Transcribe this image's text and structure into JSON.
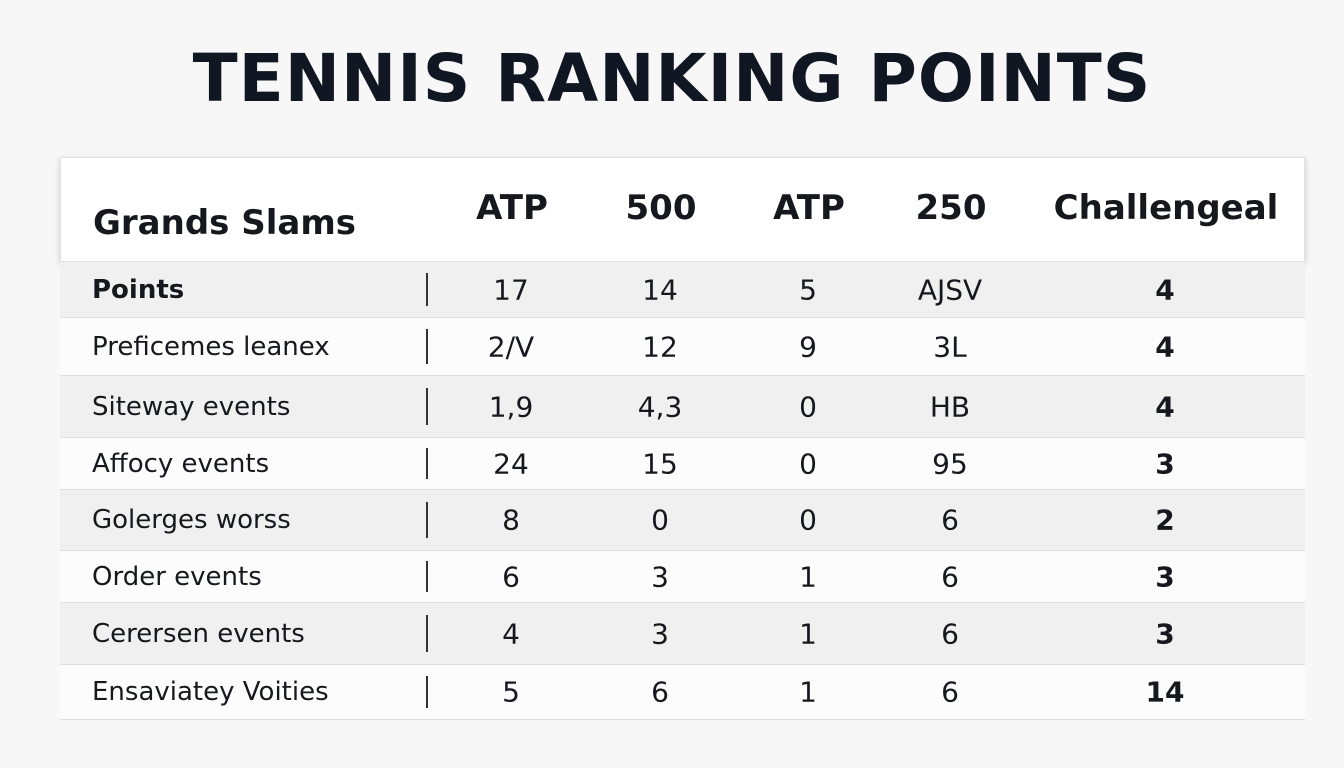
{
  "header": {
    "title": "TENNIS RANKING POINTS"
  },
  "table": {
    "columns": [
      "Grands Slams",
      "ATP",
      "500",
      "ATP",
      "250",
      "Challengeal"
    ],
    "rows": [
      [
        "Points",
        "17",
        "14",
        "5",
        "AJSV",
        "4"
      ],
      [
        "Preficemes leanex",
        "2/V",
        "12",
        "9",
        "3L",
        "4"
      ],
      [
        "Siteway events",
        "1,9",
        "4,3",
        "0",
        "HB",
        "4"
      ],
      [
        "Affocy events",
        "24",
        "15",
        "0",
        "95",
        "3"
      ],
      [
        "Golerges worss",
        "8",
        "0",
        "0",
        "6",
        "2"
      ],
      [
        "Order events",
        "6",
        "3",
        "1",
        "6",
        "3"
      ],
      [
        "Cerersen events",
        "4",
        "3",
        "1",
        "6",
        "3"
      ],
      [
        "Ensaviatey Voities",
        "5",
        "6",
        "1",
        "6",
        "14"
      ]
    ]
  }
}
